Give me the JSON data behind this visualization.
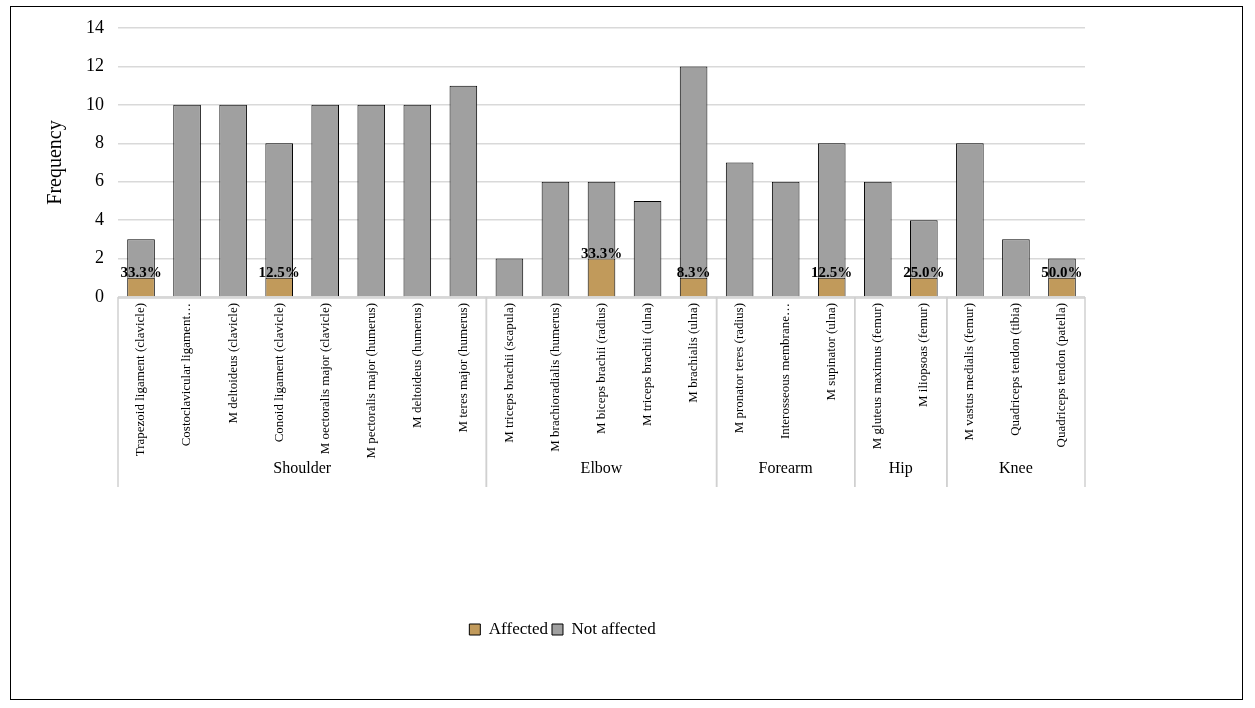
{
  "chart_data": {
    "type": "bar",
    "ylabel": "Frequency",
    "stacked": true,
    "grid": "y",
    "legend": "bottom",
    "categories": [
      "Trapezoid ligament (clavicle)",
      "Costoclavicular ligament…",
      "M deltoideus (clavicle)",
      "Conoid ligament (clavicle)",
      "M oectoralis major (clavicle)",
      "M pectoralis major (humerus)",
      "M deltoideus (humerus)",
      "M teres major (humerus)",
      "M triceps brachii (scapula)",
      "M brachioradialis (humerus)",
      "M biceps brachii (radius)",
      "M triceps brachii (ulna)",
      "M brachialis (ulna)",
      "M pronator teres (radius)",
      "Interosseous membrane…",
      "M supinator (ulna)",
      "M gluteus maximus (femur)",
      "M iliopsoas (femur)",
      "M vastus medialis (femur)",
      "Quadriceps tendon (tibia)",
      "Quadriceps tendon (patella)"
    ],
    "series": [
      {
        "name": "Affected",
        "color": "#c19a5b",
        "values": [
          1,
          0,
          0,
          1,
          0,
          0,
          0,
          0,
          0,
          0,
          2,
          0,
          1,
          0,
          0,
          1,
          0,
          1,
          0,
          0,
          1
        ]
      },
      {
        "name": "Not affected",
        "color": "#a0a0a0",
        "values": [
          2,
          10,
          10,
          7,
          10,
          10,
          10,
          11,
          2,
          6,
          4,
          5,
          11,
          7,
          6,
          7,
          6,
          3,
          8,
          3,
          1
        ]
      }
    ],
    "ylim": [
      0,
      14
    ],
    "yticks": [
      0,
      2,
      4,
      6,
      8,
      10,
      12,
      14
    ],
    "annotations": [
      "Shoulder",
      "Elbow",
      "Forearm",
      "Hip",
      "Knee",
      {
        "text": "33.3%",
        "x": "Trapezoid ligament (clavicle)",
        "y": 1
      },
      {
        "text": "12.5%",
        "x": "Conoid ligament (clavicle)",
        "y": 1
      },
      {
        "text": "33.3%",
        "x": "M biceps brachii (radius)",
        "y": 2
      },
      {
        "text": "8.3%",
        "x": "M brachialis (ulna)",
        "y": 1
      },
      {
        "text": "12.5%",
        "x": "M supinator (ulna)",
        "y": 1
      },
      {
        "text": "25.0%",
        "x": "M iliopsoas (femur)",
        "y": 1
      },
      {
        "text": "50.0%",
        "x": "Quadriceps tendon (patella)",
        "y": 1
      }
    ]
  }
}
